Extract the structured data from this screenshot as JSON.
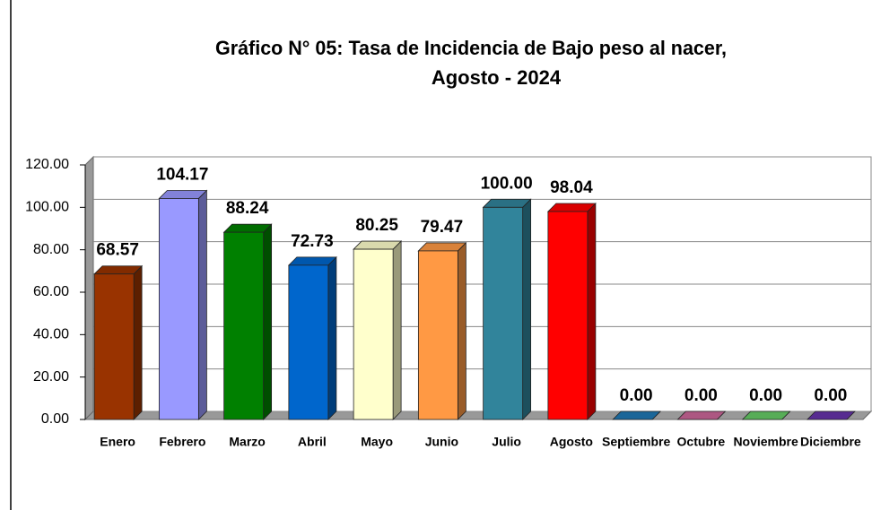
{
  "chart_data": {
    "type": "bar3d",
    "title": [
      "Gráfico N° 05: Tasa de Incidencia de Bajo peso al nacer,",
      "Agosto - 2024"
    ],
    "categories": [
      "Enero",
      "Febrero",
      "Marzo",
      "Abril",
      "Mayo",
      "Junio",
      "Julio",
      "Agosto",
      "Septiembre",
      "Octubre",
      "Noviembre",
      "Diciembre"
    ],
    "values": [
      68.57,
      104.17,
      88.24,
      72.73,
      80.25,
      79.47,
      100,
      98.04,
      0,
      0,
      0,
      0
    ],
    "value_labels": [
      "68.57",
      "104.17",
      "88.24",
      "72.73",
      "80.25",
      "79.47",
      "100.00",
      "98.04",
      "0.00",
      "0.00",
      "0.00",
      "0.00"
    ],
    "colors": [
      "#993300",
      "#9999ff",
      "#008000",
      "#0066cc",
      "#ffffcc",
      "#ff9944",
      "#31849b",
      "#ff0000",
      "#1f78b4",
      "#cc6699",
      "#66cc66",
      "#6633aa"
    ],
    "ylim": [
      0,
      120
    ],
    "yticks": [
      {
        "value": 0,
        "label": "0.00"
      },
      {
        "value": 20,
        "label": "20.00"
      },
      {
        "value": 40,
        "label": "40.00"
      },
      {
        "value": 60,
        "label": "60.00"
      },
      {
        "value": 80,
        "label": "80.00"
      },
      {
        "value": 100,
        "label": "100.00"
      },
      {
        "value": 120,
        "label": "120.00"
      }
    ],
    "grid": true
  }
}
